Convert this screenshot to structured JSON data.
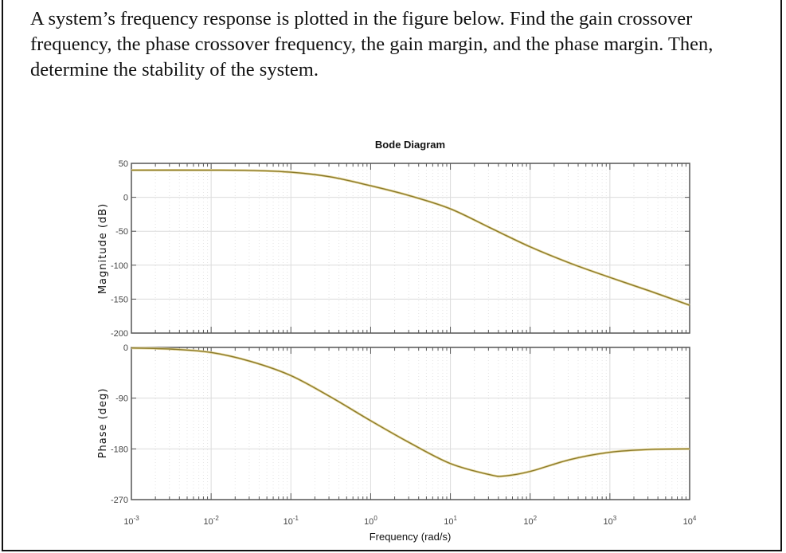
{
  "question": "A system’s frequency response is plotted in the figure below. Find the gain crossover frequency, the phase crossover frequency, the gain margin, and the phase margin. Then, determine the stability of the system.",
  "chart_data": {
    "type": "line",
    "title": "Bode Diagram",
    "xlabel": "Frequency (rad/s)",
    "xscale": "log",
    "xlim": [
      0.001,
      10000
    ],
    "x_ticks": [
      "10^-3",
      "10^-2",
      "10^-1",
      "10^0",
      "10^1",
      "10^2",
      "10^3",
      "10^4"
    ],
    "x_tick_base": "10",
    "x_tick_exps": [
      "-3",
      "-2",
      "-1",
      "0",
      "1",
      "2",
      "3",
      "4"
    ],
    "grid": true,
    "line_color": "#8a7a2a",
    "panels": [
      {
        "name": "magnitude",
        "ylabel": "Magnitude (dB)",
        "ylim": [
          -200,
          50
        ],
        "y_ticks": [
          "50",
          "0",
          "-50",
          "-100",
          "-150",
          "-200"
        ],
        "x": [
          0.001,
          0.01,
          0.0316,
          0.1,
          0.316,
          1,
          3.16,
          10,
          31.6,
          100,
          316,
          1000,
          3162,
          10000
        ],
        "y": [
          40,
          40,
          39.5,
          37,
          30,
          17,
          2,
          -17,
          -45,
          -73,
          -97,
          -118,
          -138,
          -159
        ]
      },
      {
        "name": "phase",
        "ylabel": "Phase (deg)",
        "ylim": [
          -270,
          0
        ],
        "y_ticks": [
          "0",
          "-90",
          "-180",
          "-270"
        ],
        "x": [
          0.001,
          0.00316,
          0.01,
          0.0316,
          0.1,
          0.316,
          1,
          3.16,
          10,
          31.6,
          48,
          100,
          316,
          1000,
          3162,
          10000
        ],
        "y": [
          -1,
          -3,
          -9,
          -25,
          -50,
          -88,
          -130,
          -170,
          -206,
          -226,
          -228,
          -220,
          -199,
          -186,
          -181,
          -180
        ]
      }
    ]
  }
}
